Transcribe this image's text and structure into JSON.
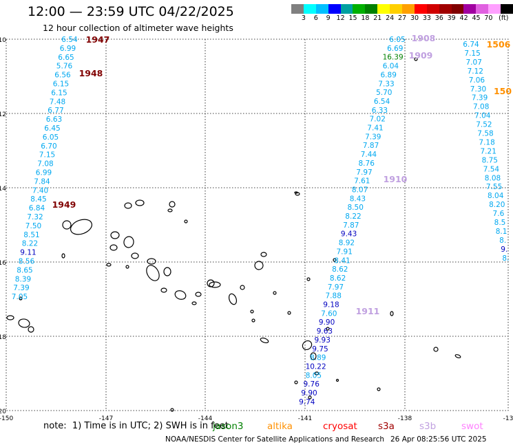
{
  "title": "12:00 — 23:59 UTC 04/22/2025",
  "subtitle": "12 hour collection of altimeter wave heights",
  "legend": {
    "colors": [
      "#808080",
      "#00ffff",
      "#00c0ff",
      "#0000ff",
      "#00a0a0",
      "#00b000",
      "#008000",
      "#ffff00",
      "#ffd000",
      "#ffa000",
      "#ff0000",
      "#d00000",
      "#a00000",
      "#800000",
      "#a000a0",
      "#e060e0",
      "#ffa0ff",
      "#000000"
    ],
    "ticks": [
      "3",
      "6",
      "9",
      "12",
      "15",
      "18",
      "21",
      "24",
      "27",
      "30",
      "33",
      "36",
      "39",
      "42",
      "45",
      "70"
    ],
    "unit": "(ft)"
  },
  "axes": {
    "lat_labels": [
      "-10",
      "-12",
      "-14",
      "-16",
      "-18",
      "-20"
    ],
    "lon_labels": [
      "-150",
      "-147",
      "-144",
      "-141",
      "-138",
      "-13"
    ]
  },
  "passes": [
    {
      "id": "1947",
      "color": "#800000"
    },
    {
      "id": "1948",
      "color": "#800000"
    },
    {
      "id": "1949",
      "color": "#800000"
    },
    {
      "id": "1908",
      "color": "#c0a0e0"
    },
    {
      "id": "1909",
      "color": "#c0a0e0"
    },
    {
      "id": "1910",
      "color": "#c0a0e0"
    },
    {
      "id": "1911",
      "color": "#c0a0e0"
    },
    {
      "id": "1506",
      "color": "#ff9000"
    },
    {
      "id": "150",
      "color": "#ff9000"
    }
  ],
  "track_west": [
    "6.54",
    "6.99",
    "6.65",
    "5.76",
    "6.56",
    "6.15",
    "6.15",
    "7.48",
    "6.77",
    "6.63",
    "6.45",
    "6.05",
    "6.70",
    "7.15",
    "7.08",
    "6.99",
    "7.84",
    "7.40",
    "8.45",
    "6.84",
    "7.32",
    "7.50",
    "8.51",
    "8.22",
    "9.11",
    "8.56",
    "8.65",
    "8.39",
    "7.39",
    "7.05"
  ],
  "track_mid": [
    "6.05",
    "6.69",
    "16.39",
    "6.04",
    "6.89",
    "7.33",
    "5.70",
    "6.54",
    "6.33",
    "7.02",
    "7.41",
    "7.39",
    "7.87",
    "7.44",
    "8.76",
    "7.97",
    "7.61",
    "8.07",
    "8.43",
    "8.50",
    "8.22",
    "7.87",
    "9.43",
    "8.92",
    "7.91",
    "8.41",
    "8.62",
    "8.62",
    "7.97",
    "7.88",
    "9.18",
    "7.60",
    "9.90",
    "9.63",
    "9.93",
    "9.75",
    "8.89",
    "10.22",
    "8.05",
    "9.76",
    "9.90",
    "9.74"
  ],
  "track_east": [
    "6.74",
    "7.15",
    "7.07",
    "7.12",
    "7.06",
    "7.30",
    "7.39",
    "7.08",
    "7.04",
    "7.52",
    "7.58",
    "7.18",
    "7.21",
    "8.75",
    "7.54",
    "8.08",
    "7.55",
    "8.04",
    "8.20",
    "7.6",
    "8.5",
    "8.1",
    "8.",
    "9.",
    "8."
  ],
  "note": "note:  1) Time is in UTC; 2) SWH is in feet",
  "satellites": [
    {
      "name": "jason3",
      "color": "#008000"
    },
    {
      "name": "altika",
      "color": "#ff9000"
    },
    {
      "name": "cryosat",
      "color": "#ff0000"
    },
    {
      "name": "s3a",
      "color": "#a00000"
    },
    {
      "name": "s3b",
      "color": "#c0a0e0"
    },
    {
      "name": "swot",
      "color": "#ff80ff"
    }
  ],
  "credit": "NOAA/NESDIS Center for Satellite Applications and Research",
  "timestamp": "26 Apr 08:25:56 UTC 2025"
}
